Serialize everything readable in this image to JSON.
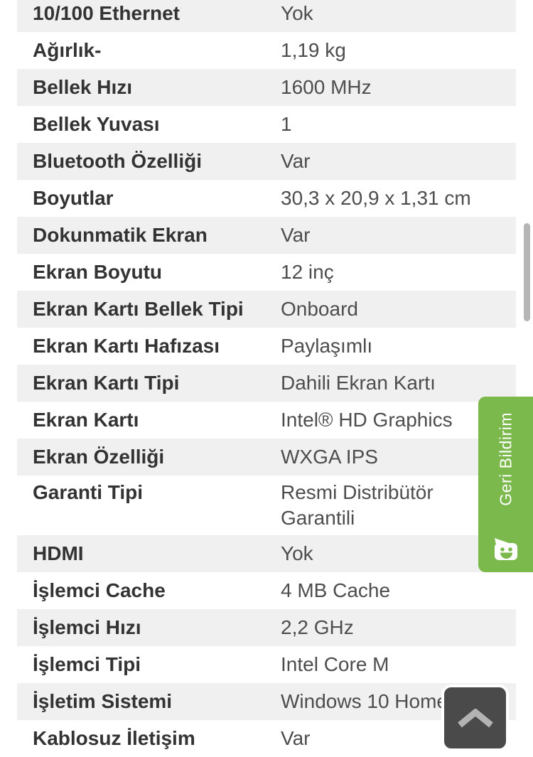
{
  "table": {
    "rows": [
      {
        "label": "10/100 Ethernet",
        "value": "Yok"
      },
      {
        "label": "Ağırlık-",
        "value": "1,19 kg"
      },
      {
        "label": "Bellek Hızı",
        "value": "1600 MHz"
      },
      {
        "label": "Bellek Yuvası",
        "value": "1"
      },
      {
        "label": "Bluetooth Özelliği",
        "value": "Var"
      },
      {
        "label": "Boyutlar",
        "value": "30,3 x 20,9 x 1,31 cm"
      },
      {
        "label": "Dokunmatik Ekran",
        "value": "Var"
      },
      {
        "label": "Ekran Boyutu",
        "value": "12 inç"
      },
      {
        "label": "Ekran Kartı Bellek Tipi",
        "value": "Onboard"
      },
      {
        "label": "Ekran Kartı Hafızası",
        "value": "Paylaşımlı"
      },
      {
        "label": "Ekran Kartı Tipi",
        "value": "Dahili Ekran Kartı"
      },
      {
        "label": "Ekran Kartı",
        "value": "Intel® HD Graphics"
      },
      {
        "label": "Ekran Özelliği",
        "value": "WXGA IPS"
      },
      {
        "label": "Garanti Tipi",
        "value": "Resmi Distribütör Garantili"
      },
      {
        "label": "HDMI",
        "value": "Yok"
      },
      {
        "label": "İşlemci Cache",
        "value": "4 MB Cache"
      },
      {
        "label": "İşlemci Hızı",
        "value": "2,2 GHz"
      },
      {
        "label": "İşlemci Tipi",
        "value": "Intel Core M"
      },
      {
        "label": "İşletim Sistemi",
        "value": "Windows 10 Home"
      },
      {
        "label": "Kablosuz İletişim",
        "value": "Var"
      }
    ]
  },
  "feedback_tab": {
    "label": "Geri Bildirim",
    "icon": "speech-bubble-smiley-icon"
  },
  "scroll_top_button": {
    "icon": "chevron-up-icon"
  },
  "colors": {
    "row_alt_bg": "#f0f0f0",
    "label_text": "#333333",
    "value_text": "#4d4d4d",
    "feedback_green": "#7cb94c",
    "scroll_button_bg": "#4a4a4a",
    "chevron_gray": "#b3b3b3",
    "scrollbar_gray": "#b5b5b5"
  }
}
